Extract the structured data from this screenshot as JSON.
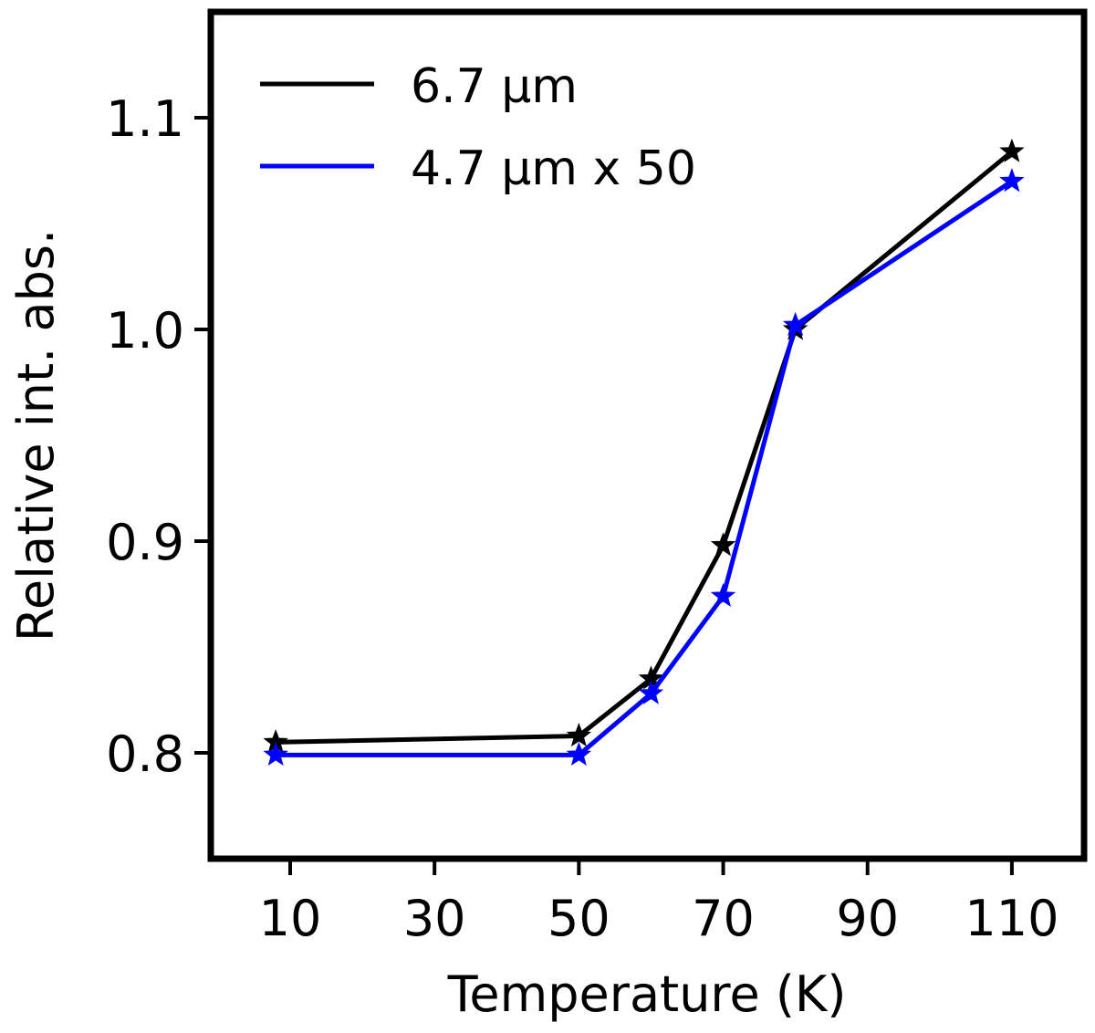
{
  "chart_data": {
    "type": "line",
    "title": "",
    "xlabel": "Temperature (K)",
    "ylabel": "Relative int. abs.",
    "xlim": [
      -1,
      120
    ],
    "ylim": [
      0.75,
      1.15
    ],
    "xticks": [
      10,
      30,
      50,
      70,
      90,
      110
    ],
    "xtick_labels": [
      "10",
      "30",
      "50",
      "70",
      "90",
      "110"
    ],
    "yticks": [
      0.8,
      0.9,
      1.0,
      1.1
    ],
    "ytick_labels": [
      "0.8",
      "0.9",
      "1.0",
      "1.1"
    ],
    "grid": false,
    "legend_position": "top-left",
    "marker": "star",
    "series": [
      {
        "name": "6.7 μm",
        "color": "#000000",
        "x": [
          8,
          50,
          60,
          70,
          80,
          110
        ],
        "y": [
          0.805,
          0.808,
          0.835,
          0.898,
          1.0,
          1.084
        ]
      },
      {
        "name": "4.7 μm x 50",
        "color": "#0000ff",
        "x": [
          8,
          50,
          60,
          70,
          80,
          110
        ],
        "y": [
          0.799,
          0.799,
          0.828,
          0.874,
          1.002,
          1.07
        ]
      }
    ]
  }
}
